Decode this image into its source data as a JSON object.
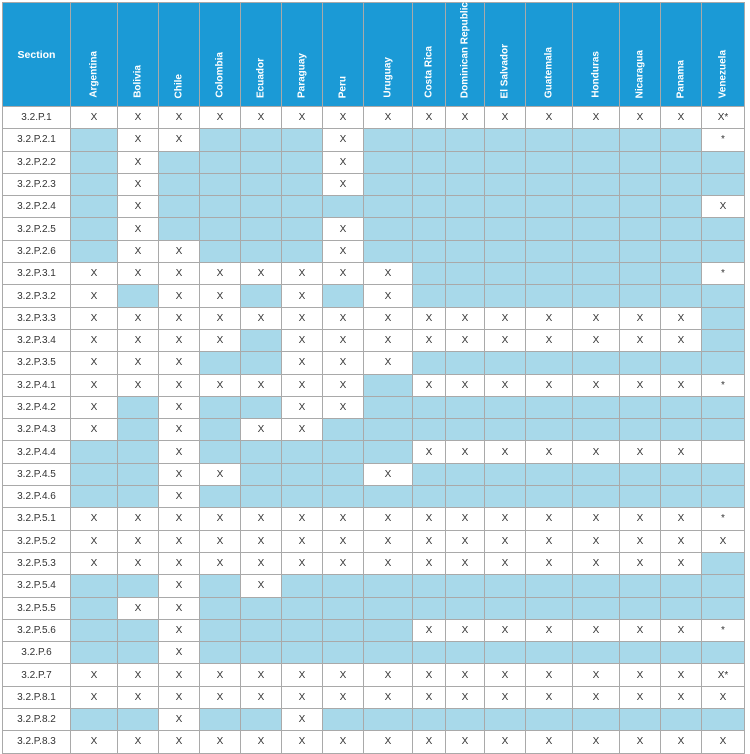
{
  "table": {
    "section_header": "Section",
    "countries": [
      "Argentina",
      "Bolivia",
      "Chile",
      "Colombia",
      "Ecuador",
      "Paraguay",
      "Peru",
      "Uruguay",
      "Costa Rica",
      "Dominican Republic",
      "El Salvador",
      "Guatemala",
      "Honduras",
      "Nicaragua",
      "Panama",
      "Venezuela"
    ],
    "colors": {
      "header": "#1b9ad6",
      "shaded": "#a8d9ea",
      "plain": "#ffffff",
      "grid": "#a9a9a9"
    },
    "rows": [
      {
        "section": "3.2.P.1",
        "cells": [
          "X",
          "X",
          "X",
          "X",
          "X",
          "X",
          "X",
          "X",
          "X",
          "X",
          "X",
          "X",
          "X",
          "X",
          "X",
          "X*"
        ]
      },
      {
        "section": "3.2.P.2.1",
        "cells": [
          null,
          "X",
          "X",
          null,
          null,
          null,
          "X",
          null,
          null,
          null,
          null,
          null,
          null,
          null,
          null,
          "*"
        ]
      },
      {
        "section": "3.2.P.2.2",
        "cells": [
          null,
          "X",
          null,
          null,
          null,
          null,
          "X",
          null,
          null,
          null,
          null,
          null,
          null,
          null,
          null,
          null
        ]
      },
      {
        "section": "3.2.P.2.3",
        "cells": [
          null,
          "X",
          null,
          null,
          null,
          null,
          "X",
          null,
          null,
          null,
          null,
          null,
          null,
          null,
          null,
          null
        ]
      },
      {
        "section": "3.2.P.2.4",
        "cells": [
          null,
          "X",
          null,
          null,
          null,
          null,
          null,
          null,
          null,
          null,
          null,
          null,
          null,
          null,
          null,
          "X"
        ]
      },
      {
        "section": "3.2.P.2.5",
        "cells": [
          null,
          "X",
          null,
          null,
          null,
          null,
          "X",
          null,
          null,
          null,
          null,
          null,
          null,
          null,
          null,
          null
        ]
      },
      {
        "section": "3.2.P.2.6",
        "cells": [
          null,
          "X",
          "X",
          null,
          null,
          null,
          "X",
          null,
          null,
          null,
          null,
          null,
          null,
          null,
          null,
          null
        ]
      },
      {
        "section": "3.2.P.3.1",
        "cells": [
          "X",
          "X",
          "X",
          "X",
          "X",
          "X",
          "X",
          "X",
          null,
          null,
          null,
          null,
          null,
          null,
          null,
          "*"
        ]
      },
      {
        "section": "3.2.P.3.2",
        "cells": [
          "X",
          null,
          "X",
          "X",
          null,
          "X",
          null,
          "X",
          null,
          null,
          null,
          null,
          null,
          null,
          null,
          null
        ]
      },
      {
        "section": "3.2.P.3.3",
        "cells": [
          "X",
          "X",
          "X",
          "X",
          "X",
          "X",
          "X",
          "X",
          "X",
          "X",
          "X",
          "X",
          "X",
          "X",
          "X",
          null
        ]
      },
      {
        "section": "3.2.P.3.4",
        "cells": [
          "X",
          "X",
          "X",
          "X",
          null,
          "X",
          "X",
          "X",
          "X",
          "X",
          "X",
          "X",
          "X",
          "X",
          "X",
          null
        ]
      },
      {
        "section": "3.2.P.3.5",
        "cells": [
          "X",
          "X",
          "X",
          null,
          null,
          "X",
          "X",
          "X",
          null,
          null,
          null,
          null,
          null,
          null,
          null,
          null
        ]
      },
      {
        "section": "3.2.P.4.1",
        "cells": [
          "X",
          "X",
          "X",
          "X",
          "X",
          "X",
          "X",
          null,
          "X",
          "X",
          "X",
          "X",
          "X",
          "X",
          "X",
          "*"
        ]
      },
      {
        "section": "3.2.P.4.2",
        "cells": [
          "X",
          null,
          "X",
          null,
          null,
          "X",
          "X",
          null,
          null,
          null,
          null,
          null,
          null,
          null,
          null,
          null
        ]
      },
      {
        "section": "3.2.P.4.3",
        "cells": [
          "X",
          null,
          "X",
          null,
          "X",
          "X",
          null,
          null,
          null,
          null,
          null,
          null,
          null,
          null,
          null,
          null
        ]
      },
      {
        "section": "3.2.P.4.4",
        "cells": [
          null,
          null,
          "X",
          null,
          null,
          null,
          null,
          null,
          "X",
          "X",
          "X",
          "X",
          "X",
          "X",
          "X",
          ""
        ]
      },
      {
        "section": "3.2.P.4.5",
        "cells": [
          null,
          null,
          "X",
          "X",
          null,
          null,
          null,
          "X",
          null,
          null,
          null,
          null,
          null,
          null,
          null,
          null
        ]
      },
      {
        "section": "3.2.P.4.6",
        "cells": [
          null,
          null,
          "X",
          null,
          null,
          null,
          null,
          null,
          null,
          null,
          null,
          null,
          null,
          null,
          null,
          null
        ]
      },
      {
        "section": "3.2.P.5.1",
        "cells": [
          "X",
          "X",
          "X",
          "X",
          "X",
          "X",
          "X",
          "X",
          "X",
          "X",
          "X",
          "X",
          "X",
          "X",
          "X",
          "*"
        ]
      },
      {
        "section": "3.2.P.5.2",
        "cells": [
          "X",
          "X",
          "X",
          "X",
          "X",
          "X",
          "X",
          "X",
          "X",
          "X",
          "X",
          "X",
          "X",
          "X",
          "X",
          "X"
        ]
      },
      {
        "section": "3.2.P.5.3",
        "cells": [
          "X",
          "X",
          "X",
          "X",
          "X",
          "X",
          "X",
          "X",
          "X",
          "X",
          "X",
          "X",
          "X",
          "X",
          "X",
          null
        ]
      },
      {
        "section": "3.2.P.5.4",
        "cells": [
          null,
          null,
          "X",
          null,
          "X",
          null,
          null,
          null,
          null,
          null,
          null,
          null,
          null,
          null,
          null,
          null
        ]
      },
      {
        "section": "3.2.P.5.5",
        "cells": [
          null,
          "X",
          "X",
          null,
          null,
          null,
          null,
          null,
          null,
          null,
          null,
          null,
          null,
          null,
          null,
          null
        ]
      },
      {
        "section": "3.2.P.5.6",
        "cells": [
          null,
          null,
          "X",
          null,
          null,
          null,
          null,
          null,
          "X",
          "X",
          "X",
          "X",
          "X",
          "X",
          "X",
          "*"
        ]
      },
      {
        "section": "3.2.P.6",
        "cells": [
          null,
          null,
          "X",
          null,
          null,
          null,
          null,
          null,
          null,
          null,
          null,
          null,
          null,
          null,
          null,
          null
        ]
      },
      {
        "section": "3.2.P.7",
        "cells": [
          "X",
          "X",
          "X",
          "X",
          "X",
          "X",
          "X",
          "X",
          "X",
          "X",
          "X",
          "X",
          "X",
          "X",
          "X",
          "X*"
        ]
      },
      {
        "section": "3.2.P.8.1",
        "cells": [
          "X",
          "X",
          "X",
          "X",
          "X",
          "X",
          "X",
          "X",
          "X",
          "X",
          "X",
          "X",
          "X",
          "X",
          "X",
          "X"
        ]
      },
      {
        "section": "3.2.P.8.2",
        "cells": [
          null,
          null,
          "X",
          null,
          null,
          "X",
          null,
          null,
          null,
          null,
          null,
          null,
          null,
          null,
          null,
          null
        ]
      },
      {
        "section": "3.2.P.8.3",
        "cells": [
          "X",
          "X",
          "X",
          "X",
          "X",
          "X",
          "X",
          "X",
          "X",
          "X",
          "X",
          "X",
          "X",
          "X",
          "X",
          "X"
        ]
      }
    ]
  }
}
